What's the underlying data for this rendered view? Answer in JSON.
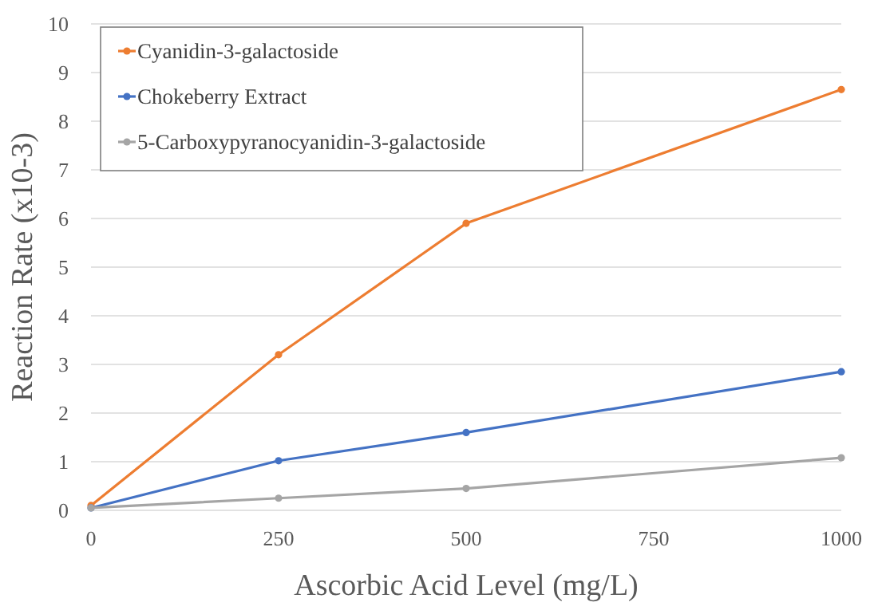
{
  "chart_data": {
    "type": "line",
    "xlabel": "Ascorbic Acid Level (mg/L)",
    "ylabel": "Reaction Rate (x10-3)",
    "x": [
      0,
      250,
      500,
      1000
    ],
    "xlim": [
      0,
      1000
    ],
    "xticks": [
      0,
      250,
      500,
      750,
      1000
    ],
    "ylim": [
      0,
      10
    ],
    "yticks": [
      0,
      1,
      2,
      3,
      4,
      5,
      6,
      7,
      8,
      9,
      10
    ],
    "grid": "y",
    "legend": "top left",
    "marker": "circle",
    "line_style": "solid",
    "series": [
      {
        "name": "Cyanidin-3-galactoside",
        "color": "#ed7d31",
        "values": [
          0.1,
          3.2,
          5.9,
          8.65
        ]
      },
      {
        "name": "Chokeberry Extract",
        "color": "#4472c4",
        "values": [
          0.05,
          1.02,
          1.6,
          2.85
        ]
      },
      {
        "name": "5-Carboxypyranocyanidin-3-galactoside",
        "color": "#a5a5a5",
        "values": [
          0.05,
          0.25,
          0.45,
          1.08
        ]
      }
    ]
  }
}
